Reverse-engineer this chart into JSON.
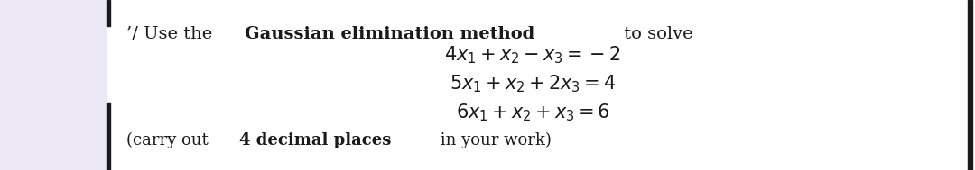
{
  "bg_color": "#ffffff",
  "left_panel_color": "#ece8f5",
  "text_color": "#1a1a1a",
  "bar_color": "#1a1a1a",
  "right_border_color": "#1a1a1a",
  "figsize": [
    10.8,
    1.89
  ],
  "dpi": 100,
  "header_prefix": "’/ Use the ",
  "header_bold": "Gaussian elimination method",
  "header_suffix": " to solve",
  "eq1": "$4x_1 + x_2 - x_3 = -2$",
  "eq2": "$5x_1 + x_2 + 2x_3 = 4$",
  "eq3": "$6x_1 + x_2 + x_3 = 6$",
  "footer_prefix": "(carry out ",
  "footer_bold": "4 decimal places",
  "footer_suffix": " in your work)",
  "header_fontsize": 14,
  "eq_fontsize": 15,
  "footer_fontsize": 13
}
